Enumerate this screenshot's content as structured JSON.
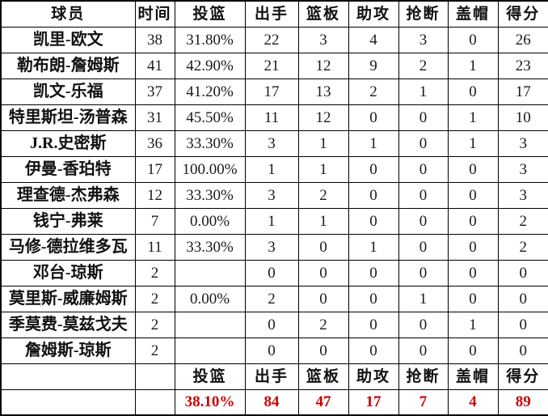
{
  "accent": {
    "total_red": "#cc0000",
    "grid_line": "#000000"
  },
  "chart_data": {
    "type": "table",
    "columns": [
      "球员",
      "时间",
      "投篮",
      "出手",
      "篮板",
      "助攻",
      "抢断",
      "盖帽",
      "得分"
    ],
    "rows": [
      [
        "凯里-欧文",
        "38",
        "31.80%",
        "22",
        "3",
        "4",
        "3",
        "0",
        "26"
      ],
      [
        "勒布朗-詹姆斯",
        "41",
        "42.90%",
        "21",
        "12",
        "9",
        "2",
        "1",
        "23"
      ],
      [
        "凯文-乐福",
        "37",
        "41.20%",
        "17",
        "13",
        "2",
        "1",
        "0",
        "17"
      ],
      [
        "特里斯坦-汤普森",
        "31",
        "45.50%",
        "11",
        "12",
        "0",
        "0",
        "1",
        "10"
      ],
      [
        "J.R.史密斯",
        "36",
        "33.30%",
        "3",
        "1",
        "1",
        "0",
        "1",
        "3"
      ],
      [
        "伊曼-香珀特",
        "17",
        "100.00%",
        "1",
        "1",
        "0",
        "0",
        "0",
        "3"
      ],
      [
        "理查德-杰弗森",
        "12",
        "33.30%",
        "3",
        "2",
        "0",
        "0",
        "0",
        "3"
      ],
      [
        "钱宁-弗莱",
        "7",
        "0.00%",
        "1",
        "1",
        "0",
        "0",
        "0",
        "2"
      ],
      [
        "马修-德拉维多瓦",
        "11",
        "33.30%",
        "3",
        "0",
        "1",
        "0",
        "0",
        "2"
      ],
      [
        "邓台-琼斯",
        "2",
        "",
        "0",
        "0",
        "0",
        "0",
        "0",
        "0"
      ],
      [
        "莫里斯-威廉姆斯",
        "2",
        "0.00%",
        "2",
        "0",
        "0",
        "1",
        "0",
        "0"
      ],
      [
        "季莫费-莫兹戈夫",
        "2",
        "",
        "0",
        "2",
        "0",
        "0",
        "1",
        "0"
      ],
      [
        "詹姆斯-琼斯",
        "2",
        "",
        "0",
        "0",
        "0",
        "0",
        "0",
        "0"
      ]
    ],
    "footer_labels": [
      "",
      "",
      "投篮",
      "出手",
      "篮板",
      "助攻",
      "抢断",
      "盖帽",
      "得分"
    ],
    "footer_totals": [
      "",
      "",
      "38.10%",
      "84",
      "47",
      "17",
      "7",
      "4",
      "89"
    ]
  }
}
